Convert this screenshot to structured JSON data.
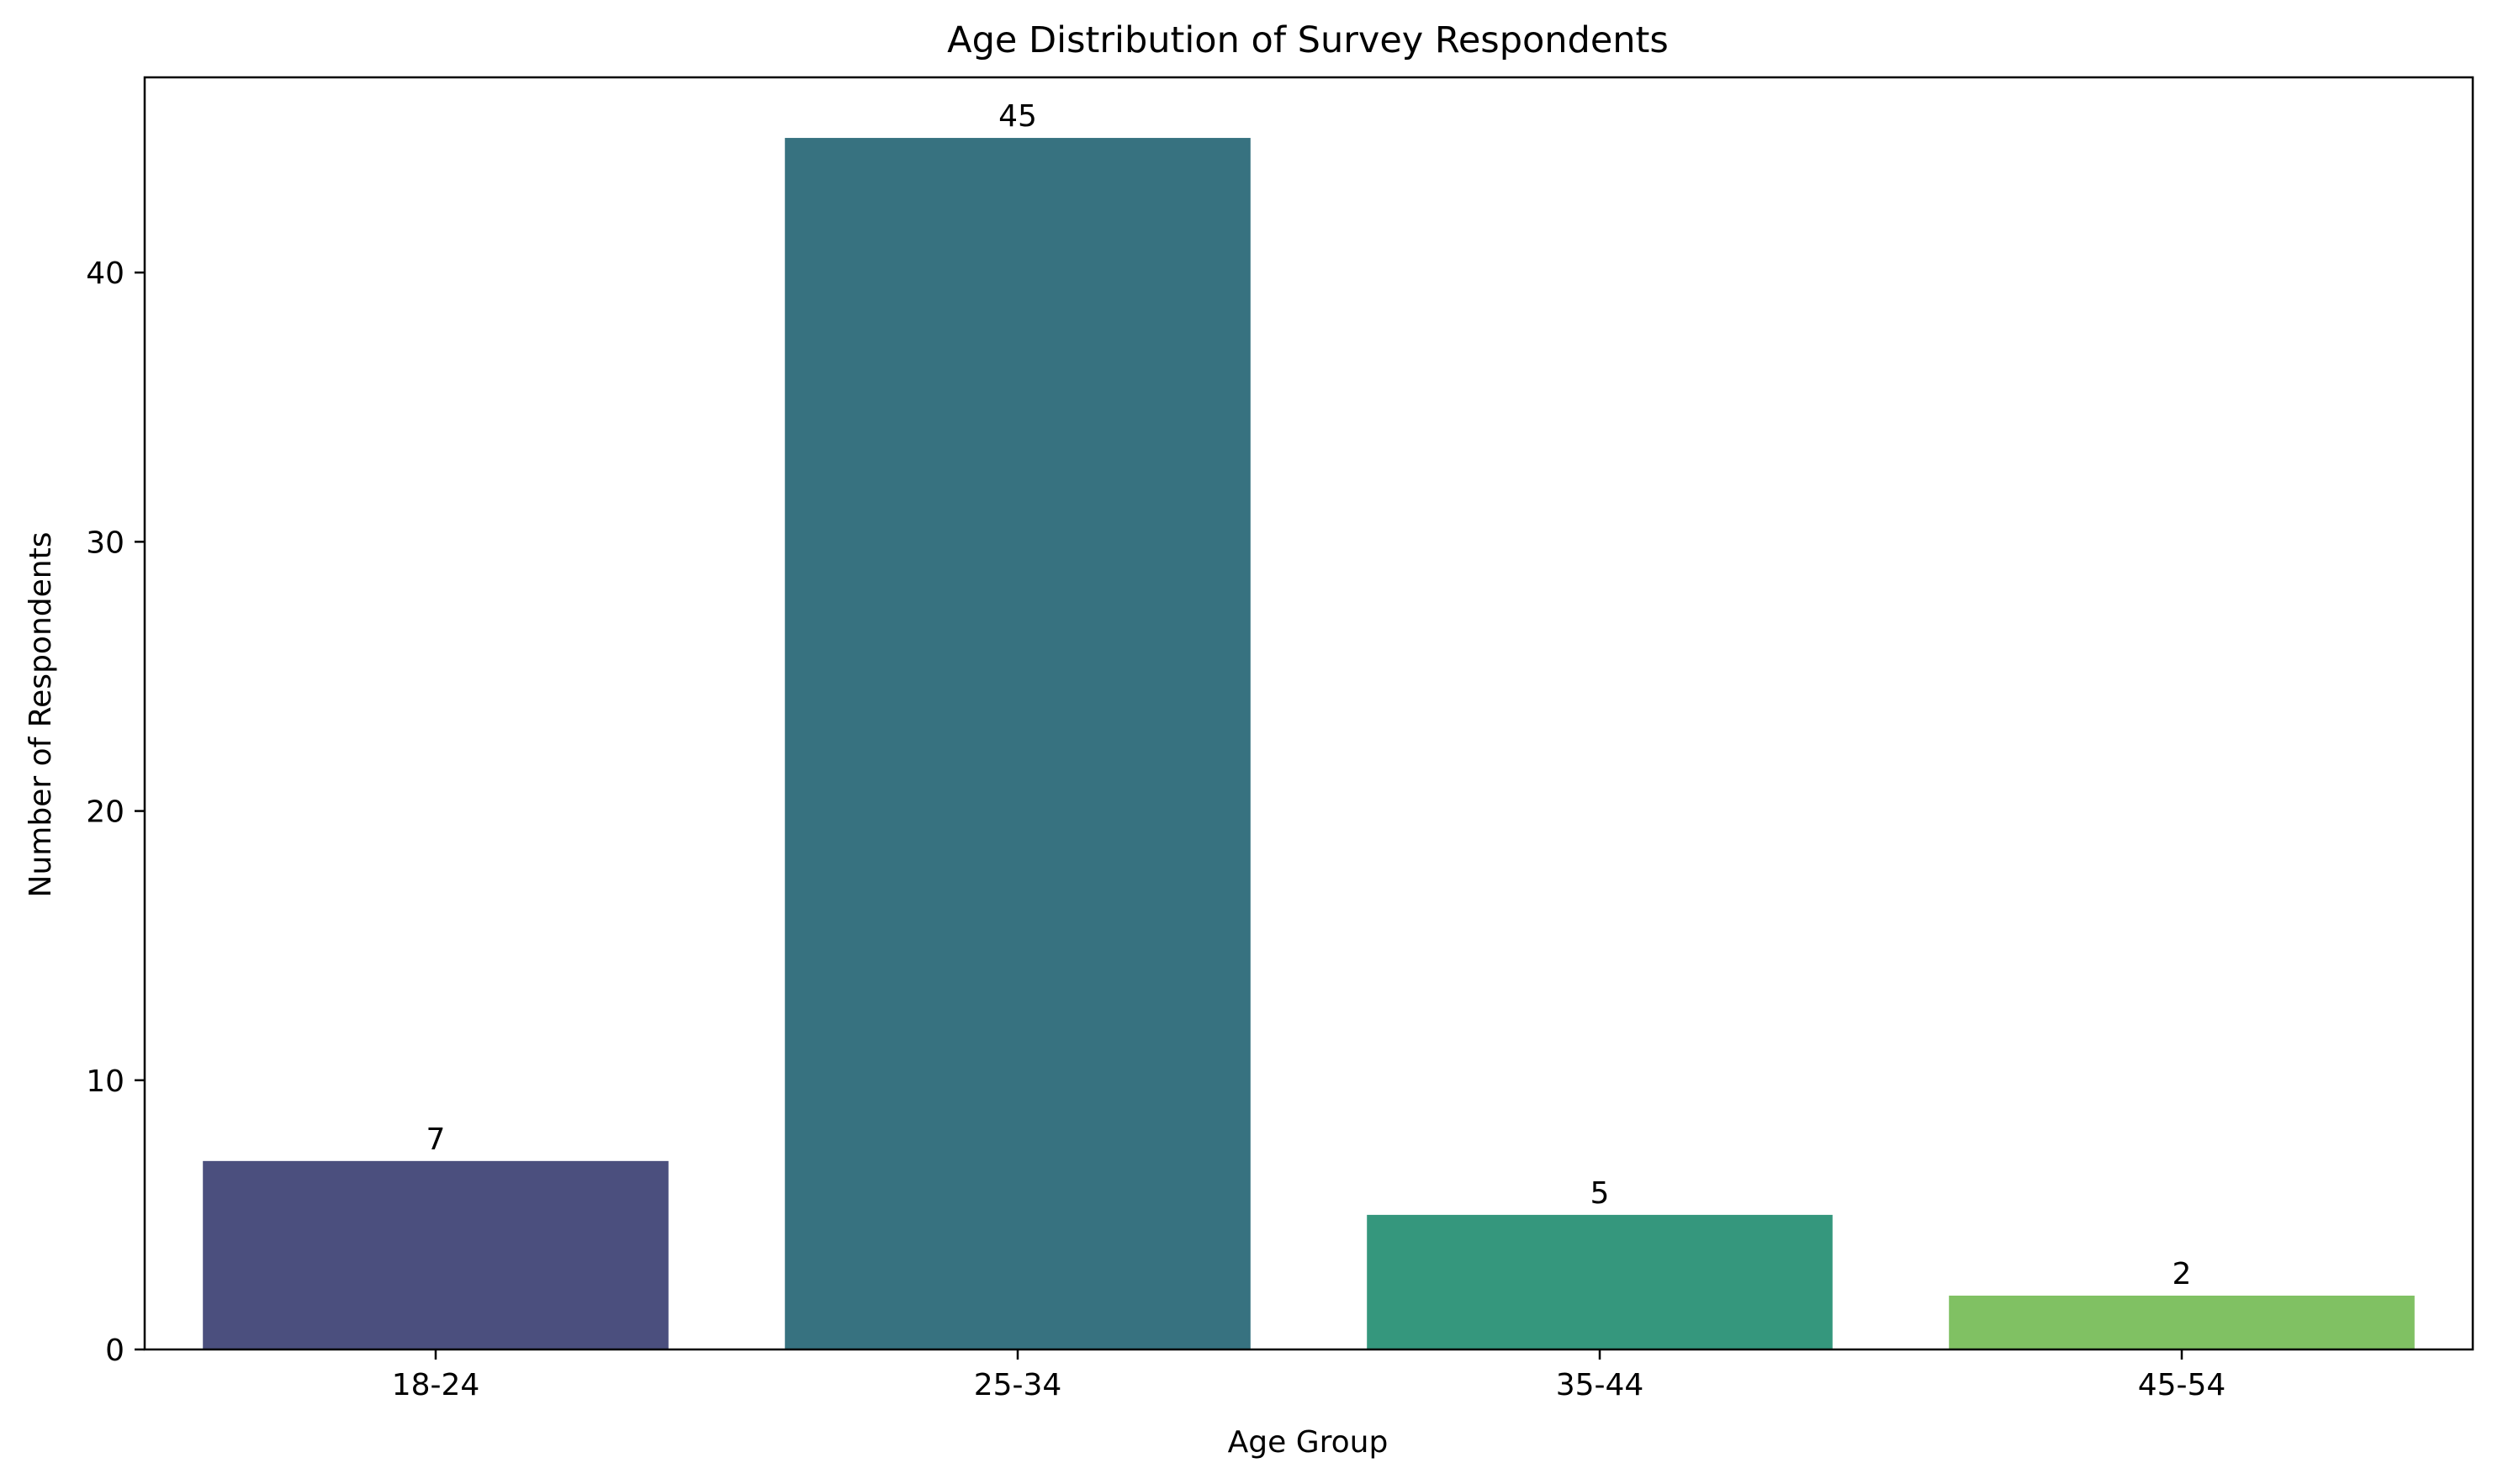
{
  "chart_data": {
    "type": "bar",
    "title": "Age Distribution of Survey Respondents",
    "xlabel": "Age Group",
    "ylabel": "Number of Respondents",
    "categories": [
      "18-24",
      "25-34",
      "35-44",
      "45-54"
    ],
    "values": [
      7,
      45,
      5,
      2
    ],
    "data_labels": [
      "7",
      "45",
      "5",
      "2"
    ],
    "colors": [
      "#4b4f7e",
      "#377280",
      "#35977d",
      "#80c163"
    ],
    "ylim": [
      0,
      47.25
    ],
    "yticks": [
      0,
      10,
      20,
      30,
      40
    ],
    "ytick_labels": [
      "0",
      "10",
      "20",
      "30",
      "40"
    ],
    "grid": false,
    "legend": "none"
  }
}
